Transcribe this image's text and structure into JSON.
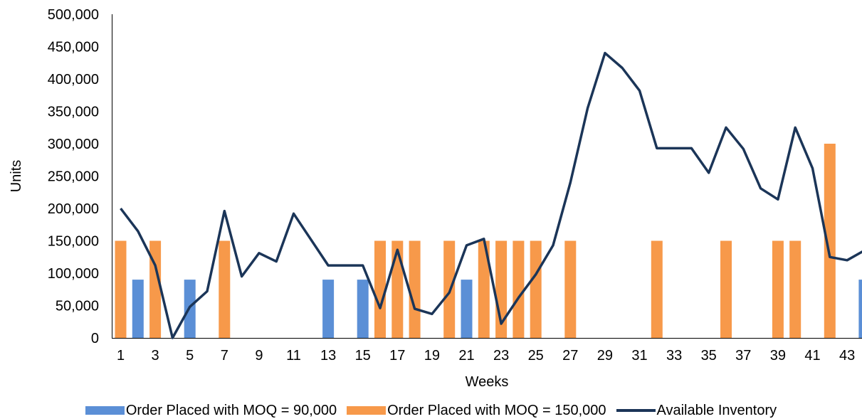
{
  "chart_data": {
    "type": "bar+line",
    "xlabel": "Weeks",
    "ylabel": "Units",
    "ylim": [
      0,
      500000
    ],
    "yticks": [
      "0",
      "50,000",
      "100,000",
      "150,000",
      "200,000",
      "250,000",
      "300,000",
      "350,000",
      "400,000",
      "450,000",
      "500,000"
    ],
    "xtick_labels": [
      "1",
      "3",
      "5",
      "7",
      "9",
      "11",
      "13",
      "15",
      "17",
      "19",
      "21",
      "23",
      "25",
      "27",
      "29",
      "31",
      "33",
      "35",
      "37",
      "39",
      "41",
      "43"
    ],
    "x": [
      1,
      2,
      3,
      4,
      5,
      6,
      7,
      8,
      9,
      10,
      11,
      12,
      13,
      14,
      15,
      16,
      17,
      18,
      19,
      20,
      21,
      22,
      23,
      24,
      25,
      26,
      27,
      28,
      29,
      30,
      31,
      32,
      33,
      34,
      35,
      36,
      37,
      38,
      39,
      40,
      41,
      42,
      43,
      44
    ],
    "grid": false,
    "legend_position": "bottom",
    "series": [
      {
        "name": "Order Placed with MOQ = 90,000",
        "type": "bar",
        "color": "#5B8FD6",
        "values": [
          0,
          90000,
          0,
          0,
          90000,
          0,
          0,
          0,
          0,
          0,
          0,
          0,
          90000,
          0,
          90000,
          0,
          0,
          0,
          0,
          0,
          90000,
          0,
          0,
          0,
          0,
          0,
          0,
          0,
          0,
          0,
          0,
          0,
          0,
          0,
          0,
          0,
          0,
          0,
          0,
          0,
          0,
          0,
          0,
          90000
        ]
      },
      {
        "name": "Order Placed with MOQ = 150,000",
        "type": "bar",
        "color": "#F7994A",
        "values": [
          150000,
          0,
          150000,
          0,
          0,
          0,
          150000,
          0,
          0,
          0,
          0,
          0,
          0,
          0,
          0,
          150000,
          150000,
          150000,
          0,
          150000,
          0,
          150000,
          150000,
          150000,
          150000,
          0,
          150000,
          0,
          0,
          0,
          0,
          150000,
          0,
          0,
          0,
          150000,
          0,
          0,
          150000,
          150000,
          0,
          300000,
          0,
          0
        ]
      },
      {
        "name": "Available Inventory",
        "type": "line",
        "color": "#1B3558",
        "values": [
          200000,
          165000,
          112000,
          0,
          48000,
          72000,
          196000,
          95000,
          131000,
          118000,
          192000,
          152000,
          112000,
          112000,
          112000,
          46000,
          136000,
          45000,
          37000,
          70000,
          143000,
          153000,
          22000,
          62000,
          98000,
          143000,
          240000,
          355000,
          440000,
          417000,
          382000,
          293000,
          293000,
          293000,
          255000,
          325000,
          292000,
          231000,
          214000,
          325000,
          262000,
          125000,
          120000,
          135000
        ]
      }
    ]
  }
}
